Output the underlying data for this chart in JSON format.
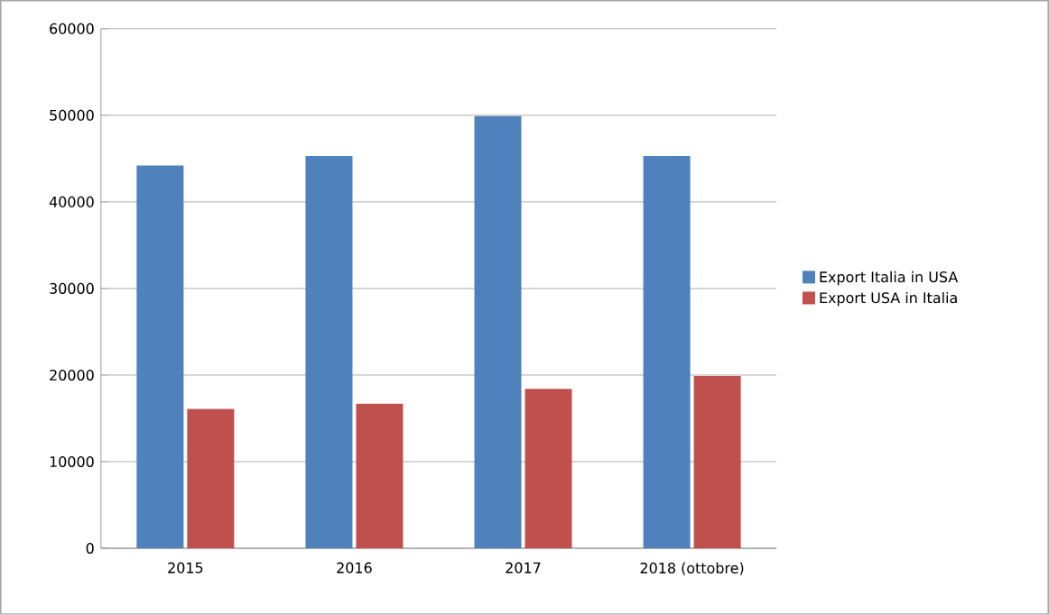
{
  "chart_data": {
    "type": "bar",
    "categories": [
      "2015",
      "2016",
      "2017",
      "2018 (ottobre)"
    ],
    "series": [
      {
        "name": "Export Italia in USA",
        "color": "#4f81bd",
        "values": [
          44200,
          45300,
          49900,
          45300
        ]
      },
      {
        "name": "Export USA in Italia",
        "color": "#c0504d",
        "values": [
          16100,
          16700,
          18400,
          19900
        ]
      }
    ],
    "ylim": [
      0,
      60000
    ],
    "yticks": [
      0,
      10000,
      20000,
      30000,
      40000,
      50000,
      60000
    ],
    "grid": "y",
    "legend": "right"
  }
}
